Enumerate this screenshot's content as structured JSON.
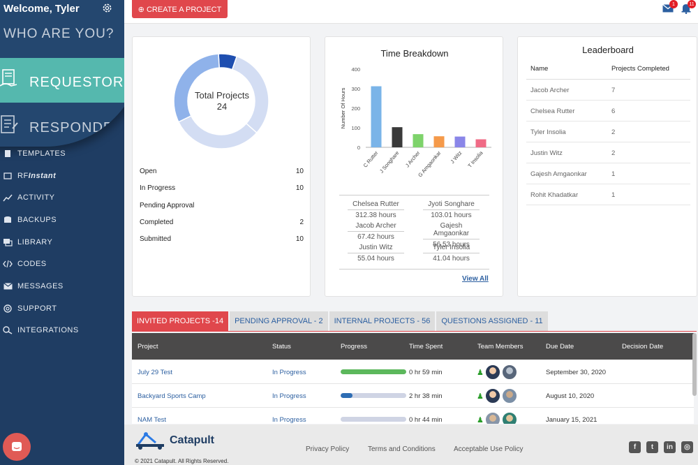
{
  "sidebar": {
    "welcome": "Welcome, Tyler",
    "who_are_you": "WHO ARE YOU?",
    "requestor": "REQUESTOR",
    "responder": "RESPONDER",
    "nav": [
      {
        "label": "TEMPLATES",
        "icon": "templates-icon"
      },
      {
        "label_a": "RF",
        "label_b": "Instant",
        "icon": "rfinstant-icon"
      },
      {
        "label": "ACTIVITY",
        "icon": "activity-icon"
      },
      {
        "label": "BACKUPS",
        "icon": "database-icon"
      },
      {
        "label": "LIBRARY",
        "icon": "library-icon"
      },
      {
        "label": "CODES",
        "icon": "code-icon"
      },
      {
        "label": "MESSAGES",
        "icon": "envelope-icon"
      },
      {
        "label": "SUPPORT",
        "icon": "lifebuoy-icon"
      },
      {
        "label": "INTEGRATIONS",
        "icon": "integrations-icon"
      }
    ]
  },
  "topbar": {
    "create_label": "⊕ CREATE A PROJECT",
    "mail_badge": "1",
    "bell_badge": "11"
  },
  "projects_card": {
    "title": "Total Projects",
    "total": "24",
    "donut": [
      {
        "label": "Open",
        "value": 10,
        "color": "#d3ddf3"
      },
      {
        "label": "In Progress",
        "value": 10,
        "color": "#8fb2ea"
      },
      {
        "label": "Completed",
        "value": 2,
        "color": "#1f4fb0"
      },
      {
        "label": "Submitted",
        "value": 10,
        "color": "#d3ddf3"
      }
    ],
    "stats": [
      {
        "label": "Open",
        "value": "10"
      },
      {
        "label": "In Progress",
        "value": "10"
      },
      {
        "label": "Pending Approval",
        "value": ""
      },
      {
        "label": "Completed",
        "value": "2"
      },
      {
        "label": "Submitted",
        "value": "10"
      }
    ]
  },
  "chart_data": {
    "type": "bar",
    "title": "Time Breakdown",
    "ylabel": "Number Of Hours",
    "xlabel": "",
    "ylim": [
      0,
      400
    ],
    "yticks": [
      0,
      100,
      200,
      300,
      400
    ],
    "categories": [
      "C Rutter",
      "J Songhare",
      "J Archer",
      "G Amgaonkar",
      "J Witz",
      "T Insolia"
    ],
    "values": [
      312.38,
      103.01,
      67.42,
      56.53,
      55.04,
      41.04
    ],
    "colors": [
      "#7ab4e8",
      "#3a3a3a",
      "#7ed36b",
      "#f59a4a",
      "#8a86e8",
      "#f06b86"
    ],
    "grid": false,
    "legend": "none"
  },
  "hours": [
    {
      "name": "Chelsea Rutter",
      "hours": "312.38 hours"
    },
    {
      "name": "Jyoti Songhare",
      "hours": "103.01 hours"
    },
    {
      "name": "Jacob Archer",
      "hours": "67.42 hours"
    },
    {
      "name": "Gajesh Amgaonkar",
      "hours": "56.53 hours"
    },
    {
      "name": "Justin Witz",
      "hours": "55.04 hours"
    },
    {
      "name": "Tyler Insolia",
      "hours": "41.04 hours"
    }
  ],
  "view_all": "View All",
  "leaderboard": {
    "title": "Leaderboard",
    "col_name": "Name",
    "col_count": "Projects Completed",
    "rows": [
      {
        "name": "Jacob Archer",
        "count": "7"
      },
      {
        "name": "Chelsea Rutter",
        "count": "6"
      },
      {
        "name": "Tyler Insolia",
        "count": "2"
      },
      {
        "name": "Justin Witz",
        "count": "2"
      },
      {
        "name": "Gajesh Amgaonkar",
        "count": "1"
      },
      {
        "name": "Rohit Khadatkar",
        "count": "1"
      }
    ]
  },
  "tabs": [
    {
      "label": "INVITED PROJECTS -14",
      "active": true
    },
    {
      "label": "PENDING APPROVAL - 2",
      "active": false
    },
    {
      "label": "INTERNAL PROJECTS - 56",
      "active": false
    },
    {
      "label": "QUESTIONS ASSIGNED - 11",
      "active": false
    }
  ],
  "table": {
    "headers": [
      "Project",
      "Status",
      "Progress",
      "Time Spent",
      "Team Members",
      "Due Date",
      "Decision Date"
    ],
    "rows": [
      {
        "project": "July 29 Test",
        "status": "In Progress",
        "progress": 1.0,
        "progress_color": "#5cb85c",
        "time": "0 hr 59 min",
        "due": "September 30, 2020",
        "decision": ""
      },
      {
        "project": "Backyard Sports Camp",
        "status": "In Progress",
        "progress": 0.18,
        "progress_color": "#2e6db4",
        "time": "2 hr 38 min",
        "due": "August 10, 2020",
        "decision": ""
      },
      {
        "project": "NAM Test",
        "status": "In Progress",
        "progress": 0.0,
        "progress_color": "#2e6db4",
        "time": "0 hr 44 min",
        "due": "January 15, 2021",
        "decision": ""
      }
    ]
  },
  "footer": {
    "brand": "Catapult",
    "copyright": "© 2021 Catapult. All Rights Reserved.",
    "links": [
      "Privacy Policy",
      "Terms and Conditions",
      "Acceptable Use Policy"
    ],
    "social": [
      {
        "icon": "facebook-icon",
        "glyph": "f"
      },
      {
        "icon": "twitter-icon",
        "glyph": "t"
      },
      {
        "icon": "linkedin-icon",
        "glyph": "in"
      },
      {
        "icon": "instagram-icon",
        "glyph": "◎"
      }
    ]
  }
}
